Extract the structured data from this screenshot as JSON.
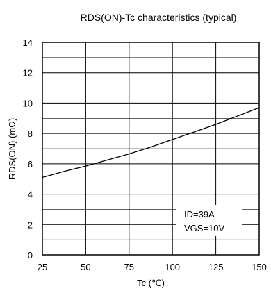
{
  "chart_data": {
    "type": "line",
    "title": "RDS(ON)-Tc characteristics (typical)",
    "xlabel": "Tc (℃)",
    "ylabel": "RDS(ON) (mΩ)",
    "xlim": [
      25,
      150
    ],
    "ylim": [
      0,
      14
    ],
    "x_ticks": [
      25,
      50,
      75,
      100,
      125,
      150
    ],
    "y_ticks": [
      0,
      2,
      4,
      6,
      8,
      10,
      12,
      14
    ],
    "grid": true,
    "annotations": [
      "ID=39A",
      "VGS=10V"
    ],
    "series": [
      {
        "x": [
          25,
          37.5,
          50,
          62.5,
          75,
          87.5,
          100,
          112.5,
          125,
          137.5,
          150
        ],
        "values": [
          5.1,
          5.5,
          5.85,
          6.25,
          6.65,
          7.1,
          7.6,
          8.1,
          8.6,
          9.15,
          9.7
        ]
      }
    ],
    "colors": {
      "line": "#000000",
      "grid": "#000000",
      "background": "#ffffff"
    }
  }
}
